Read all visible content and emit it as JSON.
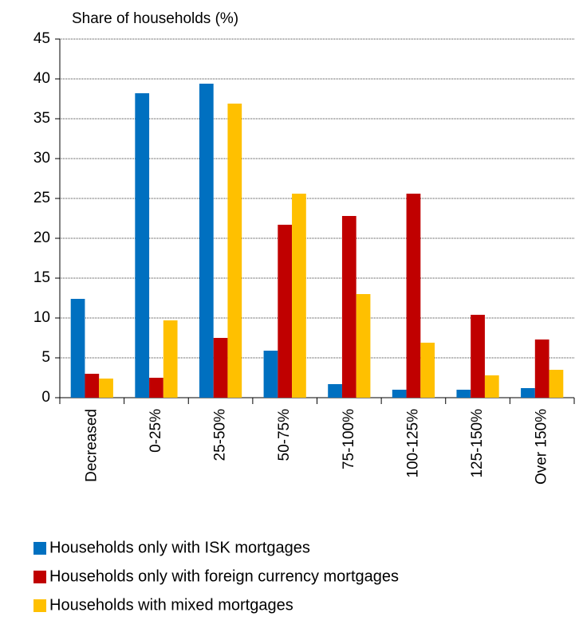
{
  "chart_data": {
    "type": "bar",
    "y_label": "Share of households (%)",
    "categories": [
      "Decreased",
      "0-25%",
      "25-50%",
      "50-75%",
      "75-100%",
      "100-125%",
      "125-150%",
      "Over 150%"
    ],
    "series": [
      {
        "name": "Households only with ISK mortgages",
        "color": "#0070c0",
        "values": [
          12.4,
          38.2,
          39.4,
          5.9,
          1.7,
          1.0,
          1.0,
          1.2
        ]
      },
      {
        "name": "Households only with foreign currency mortgages",
        "color": "#c00000",
        "values": [
          3.0,
          2.5,
          7.5,
          21.7,
          22.8,
          25.6,
          10.4,
          7.3
        ]
      },
      {
        "name": "Households with mixed mortgages",
        "color": "#ffc000",
        "values": [
          2.4,
          9.7,
          36.9,
          25.6,
          13.0,
          6.9,
          2.8,
          3.5
        ]
      }
    ],
    "ylim": [
      0,
      45
    ],
    "yticks": [
      0,
      5,
      10,
      15,
      20,
      25,
      30,
      35,
      40,
      45
    ],
    "grid": true
  }
}
